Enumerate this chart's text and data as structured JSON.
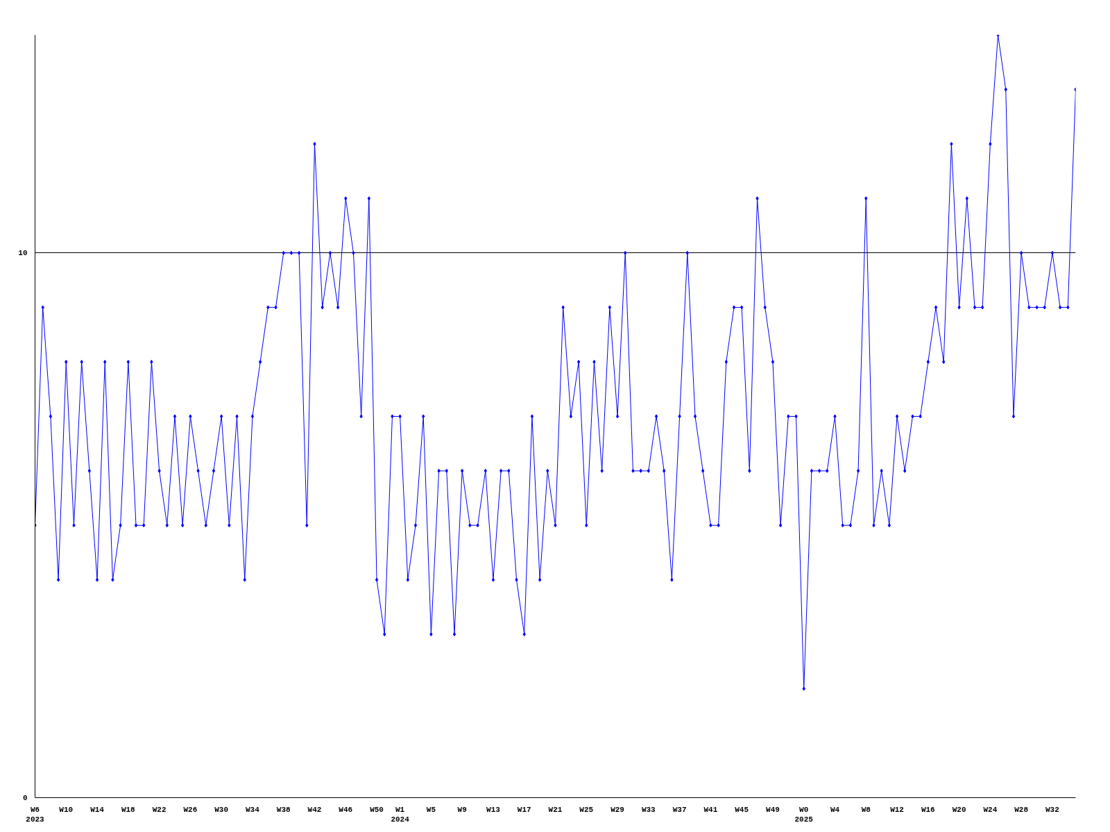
{
  "chart_data": {
    "type": "line",
    "categories": [
      "W6\n2023",
      null,
      null,
      null,
      "W10",
      null,
      null,
      null,
      "W14",
      null,
      null,
      null,
      "W18",
      null,
      null,
      null,
      "W22",
      null,
      null,
      null,
      "W26",
      null,
      null,
      null,
      "W30",
      null,
      null,
      null,
      "W34",
      null,
      null,
      null,
      "W38",
      null,
      null,
      null,
      "W42",
      null,
      null,
      null,
      "W46",
      null,
      null,
      null,
      "W50",
      null,
      null,
      "W1\n2024",
      null,
      null,
      null,
      "W5",
      null,
      null,
      null,
      "W9",
      null,
      null,
      null,
      "W13",
      null,
      null,
      null,
      "W17",
      null,
      null,
      null,
      "W21",
      null,
      null,
      null,
      "W25",
      null,
      null,
      null,
      "W29",
      null,
      null,
      null,
      "W33",
      null,
      null,
      null,
      "W37",
      null,
      null,
      null,
      "W41",
      null,
      null,
      null,
      "W45",
      null,
      null,
      null,
      "W49",
      null,
      null,
      null,
      "W0\n2025",
      null,
      null,
      null,
      "W4",
      null,
      null,
      null,
      "W8",
      null,
      null,
      null,
      "W12",
      null,
      null,
      null,
      "W16",
      null,
      null,
      null,
      "W20",
      null,
      null,
      null,
      "W24",
      null,
      null,
      null,
      "W28",
      null,
      null,
      null,
      "W32",
      null,
      null,
      null
    ],
    "series": [
      {
        "color": "#0000ff",
        "values": [
          5,
          9,
          7,
          4,
          8,
          5,
          8,
          6,
          4,
          8,
          4,
          5,
          8,
          5,
          5,
          8,
          6,
          5,
          7,
          5,
          7,
          6,
          5,
          6,
          7,
          5,
          7,
          4,
          7,
          8,
          9,
          9,
          10,
          10,
          10,
          5,
          12,
          9,
          10,
          9,
          11,
          10,
          7,
          11,
          4,
          3,
          7,
          7,
          4,
          5,
          7,
          3,
          6,
          6,
          3,
          6,
          5,
          5,
          6,
          4,
          6,
          6,
          4,
          3,
          7,
          4,
          6,
          5,
          9,
          7,
          8,
          5,
          8,
          6,
          9,
          7,
          10,
          6,
          6,
          6,
          7,
          6,
          4,
          7,
          10,
          7,
          6,
          5,
          5,
          8,
          9,
          9,
          6,
          11,
          9,
          8,
          5,
          7,
          7,
          2,
          6,
          6,
          6,
          7,
          5,
          5,
          6,
          11,
          5,
          6,
          5,
          7,
          6,
          7,
          7,
          8,
          9,
          8,
          12,
          9,
          11,
          9,
          9,
          12,
          14,
          13,
          7,
          10,
          9,
          9,
          9,
          10,
          9,
          9,
          13
        ]
      }
    ],
    "ylim": [
      0,
      14
    ],
    "yticks": [
      0,
      10
    ],
    "grid": "y",
    "marker": "diamond",
    "line_style": "solid"
  }
}
